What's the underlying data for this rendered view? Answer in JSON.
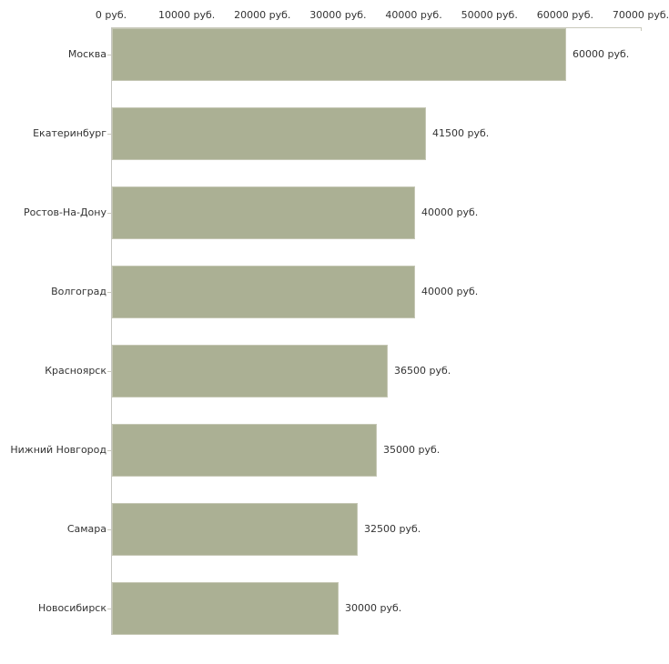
{
  "chart_data": {
    "type": "bar",
    "orientation": "horizontal",
    "title": "",
    "categories": [
      "Москва",
      "Екатеринбург",
      "Ростов-На-Дону",
      "Волгоград",
      "Красноярск",
      "Нижний Новгород",
      "Самара",
      "Новосибирск"
    ],
    "values": [
      60000,
      41500,
      40000,
      40000,
      36500,
      35000,
      32500,
      30000
    ],
    "value_labels": [
      "60000 руб.",
      "41500 руб.",
      "40000 руб.",
      "40000 руб.",
      "36500 руб.",
      "35000 руб.",
      "32500 руб.",
      "30000 руб."
    ],
    "x_axis": {
      "position": "top",
      "range": [
        0,
        70000
      ],
      "ticks": [
        0,
        10000,
        20000,
        30000,
        40000,
        50000,
        60000,
        70000
      ],
      "tick_labels": [
        "0 руб.",
        "10000 руб.",
        "20000 руб.",
        "30000 руб.",
        "40000 руб.",
        "50000 руб.",
        "60000 руб.",
        "70000 руб."
      ],
      "unit": "руб."
    },
    "legend": false,
    "grid": false,
    "colors": {
      "bar_fill": "#abb094",
      "bar_border": "#c5c7b4",
      "axis_line": "#c9c9bb",
      "text": "#333333",
      "background": "#ffffff"
    }
  }
}
